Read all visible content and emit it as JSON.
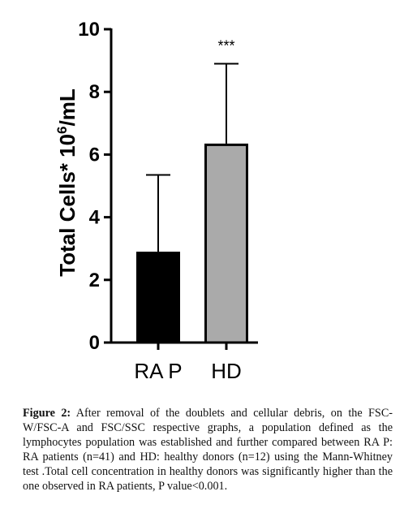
{
  "chart_data": {
    "type": "bar",
    "categories": [
      "RA P",
      "HD"
    ],
    "values": [
      2.9,
      6.35
    ],
    "errors": [
      2.45,
      2.55
    ],
    "ylabel_main": "Total Cells* 10",
    "ylabel_sup": "6",
    "ylabel_unit": "/mL",
    "ylim": [
      0,
      10
    ],
    "yticks": [
      "0",
      "2",
      "4",
      "6",
      "8",
      "10"
    ],
    "significance": [
      "",
      "***"
    ],
    "bar_colors": [
      "#000000",
      "#aaaaaa"
    ],
    "legend": "none",
    "grid": false
  },
  "caption": {
    "label": "Figure 2:",
    "text": "After removal of the doublets and cellular debris, on the FSC-W/FSC-A and FSC/SSC respective graphs, a population defined as the lymphocytes population was established and further compared between RA P: RA patients (n=41) and HD: healthy donors (n=12) using the Mann-Whitney test .Total cell concentration in healthy donors was significantly higher than the one observed in RA patients, P value<0.001."
  }
}
